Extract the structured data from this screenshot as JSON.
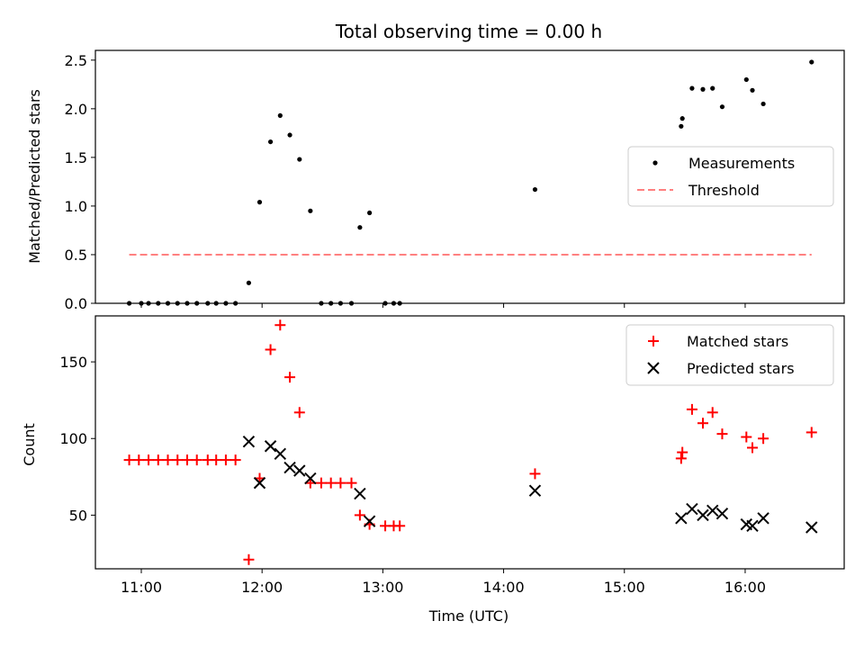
{
  "title": "Total observing time = 0.00 h",
  "colors": {
    "matched": "#ff0000",
    "predicted": "#000000",
    "threshold": "#ff8080",
    "measurement": "#000000"
  },
  "chart_data": [
    {
      "type": "scatter",
      "ylabel": "Matched/Predicted stars",
      "xlim": [
        10.62,
        16.82
      ],
      "ylim": [
        0,
        2.6
      ],
      "yticks": [
        0.0,
        0.5,
        1.0,
        1.5,
        2.0,
        2.5
      ],
      "ytick_labels": [
        "0.0",
        "0.5",
        "1.0",
        "1.5",
        "2.0",
        "2.5"
      ],
      "xticks": [
        11,
        12,
        13,
        14,
        15,
        16
      ],
      "legend": {
        "placement": "center-right",
        "entries": [
          "Measurements",
          "Threshold"
        ]
      },
      "series": [
        {
          "name": "Measurements",
          "marker": "dot",
          "x": [
            10.9,
            11.0,
            11.06,
            11.14,
            11.22,
            11.3,
            11.38,
            11.46,
            11.55,
            11.62,
            11.7,
            11.78,
            11.89,
            11.98,
            12.07,
            12.15,
            12.23,
            12.31,
            12.4,
            12.49,
            12.57,
            12.65,
            12.74,
            12.81,
            12.89,
            13.02,
            13.09,
            13.14,
            14.26,
            15.47,
            15.48,
            15.56,
            15.65,
            15.73,
            15.81,
            16.01,
            16.06,
            16.15,
            16.55
          ],
          "y": [
            0,
            0,
            0,
            0,
            0,
            0,
            0,
            0,
            0,
            0,
            0,
            0,
            0.21,
            1.04,
            1.66,
            1.93,
            1.73,
            1.48,
            0.95,
            0,
            0,
            0,
            0,
            0.78,
            0.93,
            0,
            0,
            0,
            1.17,
            1.82,
            1.9,
            2.21,
            2.2,
            2.21,
            2.02,
            2.3,
            2.19,
            2.05,
            2.48
          ]
        },
        {
          "name": "Threshold",
          "style": "dashed",
          "x": [
            10.9,
            16.55
          ],
          "y": [
            0.5,
            0.5
          ]
        }
      ]
    },
    {
      "type": "scatter",
      "xlabel": "Time (UTC)",
      "ylabel": "Count",
      "xlim": [
        10.62,
        16.82
      ],
      "ylim": [
        15,
        180
      ],
      "yticks": [
        50,
        100,
        150
      ],
      "ytick_labels": [
        "50",
        "100",
        "150"
      ],
      "xticks": [
        11,
        12,
        13,
        14,
        15,
        16
      ],
      "xtick_labels": [
        "11:00",
        "12:00",
        "13:00",
        "14:00",
        "15:00",
        "16:00"
      ],
      "legend": {
        "placement": "top-right",
        "entries": [
          "Matched stars",
          "Predicted stars"
        ]
      },
      "series": [
        {
          "name": "Matched stars",
          "marker": "plus",
          "x": [
            10.9,
            10.98,
            11.06,
            11.14,
            11.22,
            11.3,
            11.38,
            11.46,
            11.55,
            11.62,
            11.7,
            11.78,
            11.89,
            11.98,
            12.07,
            12.15,
            12.23,
            12.31,
            12.4,
            12.49,
            12.57,
            12.65,
            12.74,
            12.81,
            12.89,
            13.02,
            13.09,
            13.14,
            14.26,
            15.47,
            15.48,
            15.56,
            15.65,
            15.73,
            15.81,
            16.01,
            16.06,
            16.15,
            16.55
          ],
          "y": [
            86,
            86,
            86,
            86,
            86,
            86,
            86,
            86,
            86,
            86,
            86,
            86,
            21,
            74,
            158,
            174,
            140,
            117,
            71,
            71,
            71,
            71,
            71,
            50,
            44,
            43,
            43,
            43,
            77,
            87,
            91,
            119,
            110,
            117,
            103,
            101,
            94,
            100,
            104
          ]
        },
        {
          "name": "Predicted stars",
          "marker": "x",
          "x": [
            11.89,
            11.98,
            12.07,
            12.15,
            12.23,
            12.31,
            12.4,
            12.81,
            12.89,
            14.26,
            15.47,
            15.56,
            15.65,
            15.73,
            15.81,
            16.01,
            16.06,
            16.15,
            16.55
          ],
          "y": [
            98,
            71,
            95,
            90,
            81,
            79,
            74,
            64,
            46,
            66,
            48,
            54,
            50,
            53,
            51,
            44,
            43,
            48,
            42
          ]
        }
      ]
    }
  ]
}
